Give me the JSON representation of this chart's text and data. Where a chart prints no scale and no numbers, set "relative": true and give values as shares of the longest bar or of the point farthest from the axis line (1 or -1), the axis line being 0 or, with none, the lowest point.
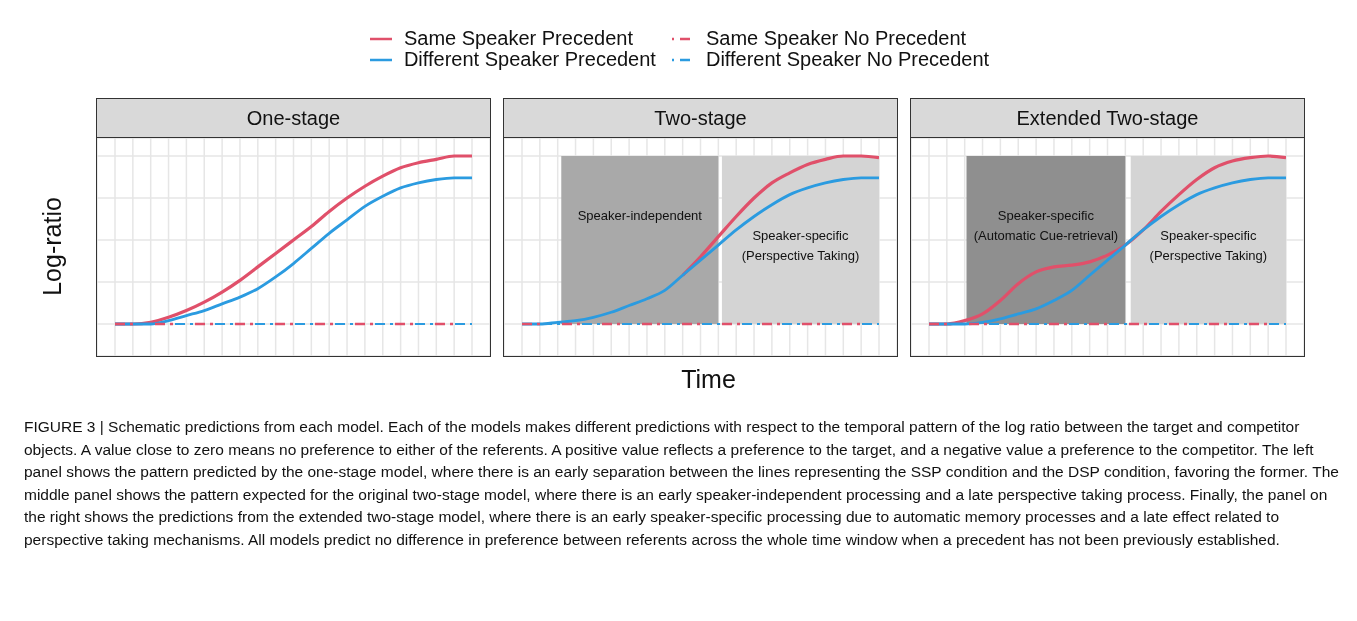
{
  "chart_data": [
    {
      "type": "line",
      "title": "One-stage",
      "ylabel": "Log-ratio",
      "relative": true,
      "grid": true,
      "tick_labels": false,
      "legend": "top",
      "categories": [
        null,
        null,
        null,
        null,
        null,
        null,
        null,
        null,
        null,
        null,
        null,
        null,
        null,
        null,
        null,
        null,
        null,
        null,
        null,
        null,
        null
      ],
      "series": [
        {
          "name": "Same Speaker Precedent",
          "color": "#e0506a",
          "line_style": "solid",
          "values": [
            0,
            0,
            0.01,
            0.04,
            0.08,
            0.13,
            0.19,
            0.26,
            0.34,
            0.42,
            0.5,
            0.58,
            0.67,
            0.75,
            0.82,
            0.88,
            0.93,
            0.96,
            0.98,
            1.0,
            1.0
          ]
        },
        {
          "name": "Different Speaker Precedent",
          "color": "#2b9be0",
          "line_style": "solid",
          "values": [
            0,
            0,
            0,
            0.02,
            0.05,
            0.08,
            0.12,
            0.16,
            0.21,
            0.28,
            0.36,
            0.45,
            0.54,
            0.62,
            0.7,
            0.76,
            0.81,
            0.84,
            0.86,
            0.87,
            0.87
          ]
        },
        {
          "name": "Same Speaker No Precedent",
          "color": "#e0506a",
          "line_style": "dashed",
          "values": [
            0,
            0,
            0,
            0,
            0,
            0,
            0,
            0,
            0,
            0,
            0,
            0,
            0,
            0,
            0,
            0,
            0,
            0,
            0,
            0,
            0
          ]
        },
        {
          "name": "Different Speaker No Precedent",
          "color": "#2b9be0",
          "line_style": "dashed",
          "values": [
            0,
            0,
            0,
            0,
            0,
            0,
            0,
            0,
            0,
            0,
            0,
            0,
            0,
            0,
            0,
            0,
            0,
            0,
            0,
            0,
            0
          ]
        }
      ],
      "annotations": [
        "FIGURE 3 | Schematic predictions from each model. Each of the models makes different predictions with respect to the temporal pattern of the log ratio between the target and competitor objects. A value close to zero means no preference to either of the referents. A positive value reflects a preference to the target, and a negative value a preference to the competitor. The left panel shows the pattern predicted by the one-stage model, where there is an early separation between the lines representing the SSP condition and the DSP condition, favoring the former. The middle panel shows the pattern expected for the original two-stage model, where there is an early speaker-independent processing and a late perspective taking process. Finally, the panel on the right shows the predictions from the extended two-stage model, where there is an early speaker-specific processing due to automatic memory processes and a late effect related to perspective taking mechanisms. All models predict no difference in preference between referents across the whole time window when a precedent has not been previously established."
      ]
    },
    {
      "type": "line",
      "title": "Two-stage",
      "xlabel": "Time",
      "relative": true,
      "grid": true,
      "tick_labels": false,
      "categories": [
        null,
        null,
        null,
        null,
        null,
        null,
        null,
        null,
        null,
        null,
        null,
        null,
        null,
        null,
        null,
        null,
        null,
        null,
        null,
        null,
        null
      ],
      "series": [
        {
          "color": "#e0506a",
          "line_style": "solid",
          "values": [
            null,
            null,
            null,
            null,
            null,
            null,
            null,
            null,
            null,
            0.29,
            0.4,
            0.52,
            0.64,
            0.75,
            0.84,
            0.9,
            0.95,
            0.98,
            1.0,
            1.0,
            0.99
          ]
        },
        {
          "color": "#2b9be0",
          "line_style": "solid",
          "values": [
            0,
            0,
            0.01,
            0.02,
            0.04,
            0.07,
            0.11,
            0.15,
            0.2,
            0.29,
            0.38,
            0.47,
            0.56,
            0.64,
            0.71,
            0.77,
            0.81,
            0.84,
            0.86,
            0.87,
            0.87
          ]
        },
        {
          "color": "#e0506a",
          "line_style": "dashed",
          "values": [
            0,
            0,
            0,
            0,
            0,
            0,
            0,
            0,
            0,
            0,
            0,
            0,
            0,
            0,
            0,
            0,
            0,
            0,
            0,
            0,
            0
          ]
        },
        {
          "color": "#2b9be0",
          "line_style": "dashed",
          "values": [
            0,
            0,
            0,
            0,
            0,
            0,
            0,
            0,
            0,
            0,
            0,
            0,
            0,
            0,
            0,
            0,
            0,
            0,
            0,
            0,
            0
          ]
        }
      ],
      "annotations": [
        "Speaker-independent",
        "Speaker-specific\n(Perspective Taking)"
      ]
    },
    {
      "type": "line",
      "title": "Extended Two-stage",
      "relative": true,
      "grid": true,
      "tick_labels": false,
      "categories": [
        null,
        null,
        null,
        null,
        null,
        null,
        null,
        null,
        null,
        null,
        null,
        null,
        null,
        null,
        null,
        null,
        null,
        null,
        null,
        null,
        null
      ],
      "series": [
        {
          "color": "#e0506a",
          "line_style": "solid",
          "values": [
            0,
            0,
            0.02,
            0.06,
            0.14,
            0.24,
            0.31,
            0.34,
            0.35,
            0.37,
            0.41,
            0.47,
            0.56,
            0.67,
            0.77,
            0.86,
            0.93,
            0.97,
            0.99,
            1.0,
            0.99
          ]
        },
        {
          "color": "#2b9be0",
          "line_style": "solid",
          "values": [
            0,
            0,
            0,
            0.01,
            0.03,
            0.06,
            0.09,
            0.14,
            0.2,
            0.29,
            0.38,
            0.47,
            0.56,
            0.64,
            0.71,
            0.77,
            0.81,
            0.84,
            0.86,
            0.87,
            0.87
          ]
        },
        {
          "color": "#e0506a",
          "line_style": "dashed",
          "values": [
            0,
            0,
            0,
            0,
            0,
            0,
            0,
            0,
            0,
            0,
            0,
            0,
            0,
            0,
            0,
            0,
            0,
            0,
            0,
            0,
            0
          ]
        },
        {
          "color": "#2b9be0",
          "line_style": "dashed",
          "values": [
            0,
            0,
            0,
            0,
            0,
            0,
            0,
            0,
            0,
            0,
            0,
            0,
            0,
            0,
            0,
            0,
            0,
            0,
            0,
            0,
            0
          ]
        }
      ],
      "annotations": [
        "Speaker-specific\n(Automatic Cue-retrieval)",
        "Speaker-specific\n(Perspective Taking)"
      ]
    }
  ]
}
